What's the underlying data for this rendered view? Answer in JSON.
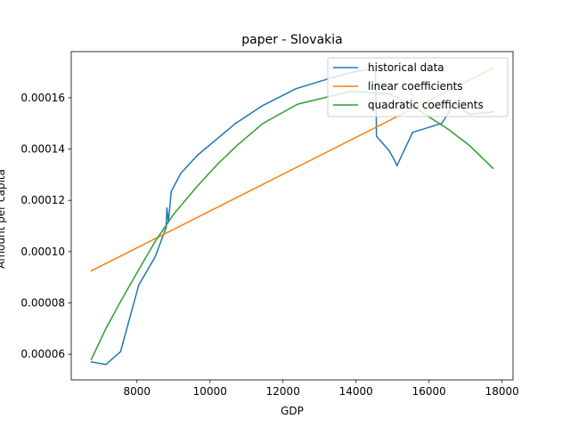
{
  "chart_data": {
    "type": "line",
    "title": "paper - Slovakia",
    "xlabel": "GDP",
    "ylabel": "Amount per capita",
    "xlim": [
      6200,
      18300
    ],
    "ylim": [
      5e-05,
      0.000178
    ],
    "xticks": [
      8000,
      10000,
      12000,
      14000,
      16000,
      18000
    ],
    "xtick_labels": [
      "8000",
      "10000",
      "12000",
      "14000",
      "16000",
      "18000"
    ],
    "yticks": [
      6e-05,
      8e-05,
      0.0001,
      0.00012,
      0.00014,
      0.00016
    ],
    "ytick_labels": [
      "0.00006",
      "0.00008",
      "0.00010",
      "0.00012",
      "0.00014",
      "0.00016"
    ],
    "legend_position": "top-right",
    "series": [
      {
        "name": "historical data",
        "color": "#1f77b4",
        "x": [
          6750,
          7150,
          7550,
          8050,
          8500,
          8800,
          8820,
          8860,
          8940,
          9200,
          9650,
          10700,
          11450,
          12350,
          13100,
          13850,
          14300,
          14530,
          14550,
          14560,
          14900,
          15060,
          15120,
          15550,
          16350,
          16700,
          17100,
          17750
        ],
        "y": [
          5.7e-05,
          5.6e-05,
          6.1e-05,
          8.7e-05,
          9.8e-05,
          0.0001095,
          0.000117,
          0.0001115,
          0.0001235,
          0.0001305,
          0.0001375,
          0.00015,
          0.000157,
          0.0001635,
          0.0001668,
          0.0001698,
          0.000171,
          0.0001705,
          0.000158,
          0.000145,
          0.0001395,
          0.0001355,
          0.0001335,
          0.0001465,
          0.00015,
          0.000158,
          0.0001535,
          0.0001545
        ]
      },
      {
        "name": "linear coefficients",
        "color": "#ff7f0e",
        "x": [
          6750,
          17750
        ],
        "y": [
          9.25e-05,
          0.0001715
        ]
      },
      {
        "name": "quadratic coefficients",
        "color": "#2ca02c",
        "x": [
          6750,
          7150,
          7550,
          8050,
          8500,
          9000,
          9650,
          10200,
          10750,
          11450,
          12400,
          13850,
          14900,
          15500,
          16000,
          16500,
          17100,
          17750
        ],
        "y": [
          5.8e-05,
          7e-05,
          8.05e-05,
          9.3e-05,
          0.000104,
          0.0001145,
          0.0001255,
          0.000134,
          0.0001415,
          0.00015,
          0.0001575,
          0.0001625,
          0.0001615,
          0.0001575,
          0.0001525,
          0.000148,
          0.0001415,
          0.0001325
        ]
      }
    ]
  }
}
